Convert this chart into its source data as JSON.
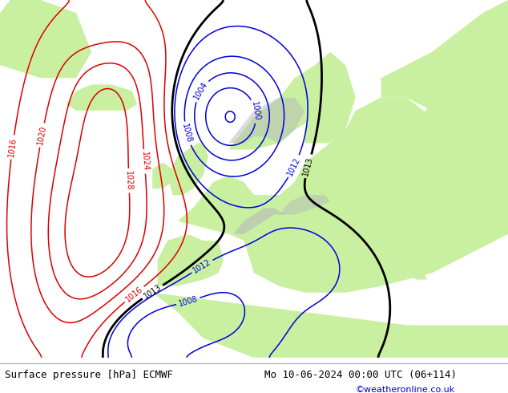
{
  "title_left": "Surface pressure [hPa] ECMWF",
  "title_right": "Mo 10-06-2024 00:00 UTC (06+114)",
  "copyright": "©weatheronline.co.uk",
  "ocean_color": "#d8d8d8",
  "land_color": "#c8f0a0",
  "gray_color": "#b8b8b8",
  "contour_blue": "#0000dd",
  "contour_red": "#dd0000",
  "contour_black": "#000000",
  "label_bg": "#ffffff",
  "figsize": [
    6.34,
    4.9
  ],
  "dpi": 100
}
